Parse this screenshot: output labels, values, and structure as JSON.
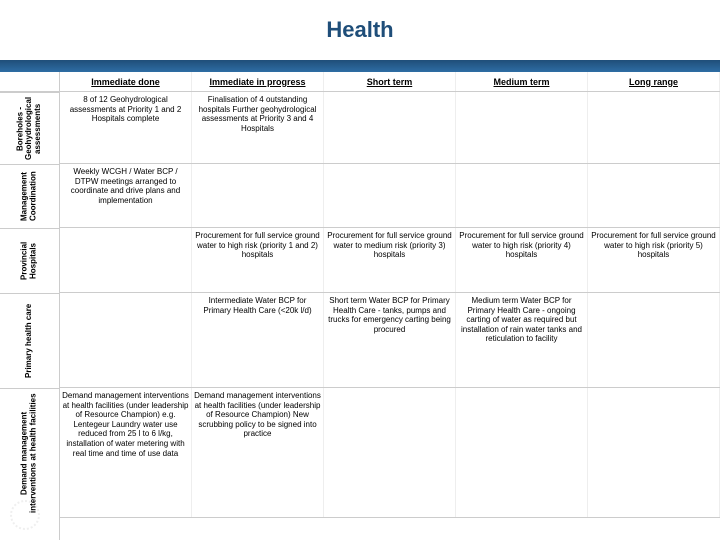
{
  "page_title": "Health",
  "colors": {
    "title_color": "#1f4e79",
    "bar_color": "#1f4e79",
    "border_color": "#cccccc",
    "background": "#ffffff"
  },
  "typography": {
    "title_fontsize": 22,
    "header_fontsize": 9,
    "cell_fontsize": 8,
    "label_fontsize": 8
  },
  "columns": [
    "Immediate done",
    "Immediate in progress",
    "Short term",
    "Medium term",
    "Long range"
  ],
  "rows": [
    {
      "label": "Boreholes - Geohydrological assessments",
      "height": 72,
      "cells": [
        "8 of 12 Geohydrological assessments at Priority 1 and 2 Hospitals complete",
        "Finalisation of 4 outstanding hospitals Further geohydrological assessments at Priority 3 and 4 Hospitals",
        "",
        "",
        ""
      ]
    },
    {
      "label": "Management Coordination",
      "height": 64,
      "cells": [
        "Weekly WCGH / Water BCP / DTPW meetings arranged to coordinate and drive plans and implementation",
        "",
        "",
        "",
        ""
      ]
    },
    {
      "label": "Provincial Hospitals",
      "height": 65,
      "cells": [
        "",
        "Procurement for full service ground water to high risk (priority 1 and 2) hospitals",
        "Procurement for full service ground water to medium risk (priority 3) hospitals",
        "Procurement for full service ground water to high risk (priority 4) hospitals",
        "Procurement for full service ground water to high risk (priority 5) hospitals"
      ]
    },
    {
      "label": "Primary health care",
      "height": 95,
      "cells": [
        "",
        "Intermediate Water BCP for Primary Health Care (<20k l/d)",
        "Short term Water BCP for Primary Health Care - tanks, pumps and trucks for emergency carting being procured",
        "Medium term Water BCP for Primary Health Care - ongoing carting of water as required but installation of rain water tanks and reticulation to facility",
        ""
      ]
    },
    {
      "label": "Demand management interventions at health facilities",
      "height": 130,
      "cells": [
        "Demand management interventions at health facilities (under leadership of Resource Champion) e.g. Lentegeur Laundry water use reduced from 25 l to 6 l/kg, installation of water metering with real time and time of use data",
        "Demand management interventions at health facilities (under leadership of Resource Champion) New scrubbing policy to be signed into practice",
        "",
        "",
        ""
      ]
    }
  ]
}
